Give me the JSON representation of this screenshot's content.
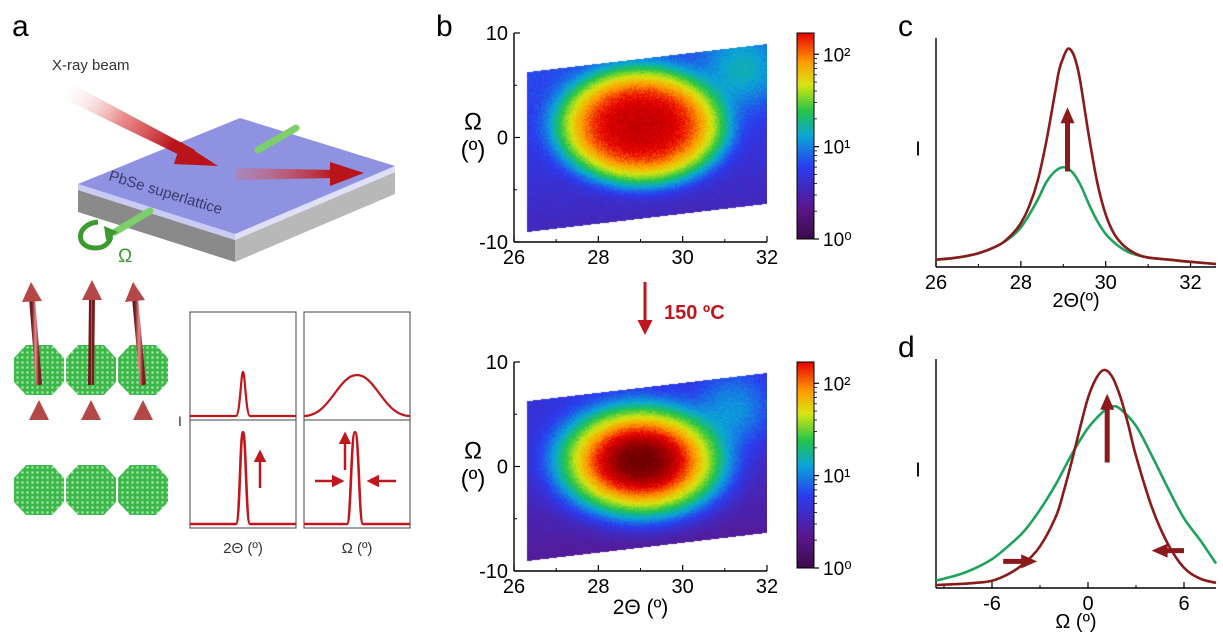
{
  "panels": {
    "a": {
      "letter": "a",
      "beam_label": "X-ray beam",
      "sample_label": "PbSe superlattice",
      "rotation_symbol": "Ω",
      "schematic_y_label": "I",
      "schematic_x_labels": [
        "2Θ (º)",
        "Ω (º)"
      ]
    },
    "b": {
      "letter": "b",
      "treatment_label": "150 ºC"
    },
    "c": {
      "letter": "c"
    },
    "d": {
      "letter": "d"
    }
  },
  "colors": {
    "dark_red": "#8b1a1a",
    "green": "#1fa35c",
    "annotation_red": "#c0161d",
    "lattice_green": "#3cb84a",
    "sample_blue": "#8f92e0"
  },
  "chart_data": [
    {
      "id": "b-top",
      "type": "heatmap",
      "title": "",
      "xlabel": "",
      "ylabel": "Ω\n(º)",
      "xlim": [
        26,
        32
      ],
      "ylim": [
        -10,
        10
      ],
      "x_ticks": [
        "26",
        "28",
        "30",
        "32"
      ],
      "y_ticks": [
        "10",
        "0",
        "-10"
      ],
      "color_scale": "log",
      "colorbar_ticks": [
        "10²",
        "10¹",
        "10⁰"
      ],
      "colorbar_range": [
        1,
        170
      ],
      "data_region": {
        "x_range": [
          26.3,
          32
        ],
        "y_bottom": [
          -9,
          -6.3
        ],
        "y_top": [
          6.3,
          9
        ]
      },
      "peaks": [
        {
          "x": 29.0,
          "y": 1.2,
          "peak_counts": 170,
          "width_2theta": 1.5,
          "width_omega": 4.2,
          "flat_top": true
        },
        {
          "x": 31.4,
          "y": 6.5,
          "peak_counts": 9,
          "width_2theta": 0.8,
          "width_omega": 3.0
        }
      ],
      "background_counts": 3.5
    },
    {
      "id": "b-bottom",
      "type": "heatmap",
      "title": "",
      "xlabel": "2Θ (º)",
      "ylabel": "Ω\n(º)",
      "xlim": [
        26,
        32
      ],
      "ylim": [
        -10,
        10
      ],
      "x_ticks": [
        "26",
        "28",
        "30",
        "32"
      ],
      "y_ticks": [
        "10",
        "0",
        "-10"
      ],
      "color_scale": "log",
      "colorbar_ticks": [
        "10²",
        "10¹",
        "10⁰"
      ],
      "colorbar_range": [
        1,
        170
      ],
      "data_region": {
        "x_range": [
          26.3,
          32
        ],
        "y_bottom": [
          -9,
          -6.3
        ],
        "y_top": [
          6.3,
          9
        ]
      },
      "peaks": [
        {
          "x": 29.0,
          "y": 0.6,
          "peak_counts": 300,
          "width_2theta": 1.1,
          "width_omega": 3.0,
          "flat_top": false
        },
        {
          "x": 31.2,
          "y": 5.5,
          "peak_counts": 7,
          "width_2theta": 0.8,
          "width_omega": 3.0
        }
      ],
      "background_counts": 2.5
    },
    {
      "id": "c",
      "type": "line",
      "title": "",
      "xlabel": "2Θ(º)",
      "ylabel": "I",
      "xlim": [
        26,
        32.6
      ],
      "x_ticks": [
        "26",
        "28",
        "30",
        "32"
      ],
      "series": [
        {
          "color": "#8b1a1a",
          "x": [
            26.0,
            26.5,
            27.0,
            27.5,
            27.8,
            28.0,
            28.2,
            28.4,
            28.6,
            28.8,
            28.9,
            29.0,
            29.1,
            29.2,
            29.3,
            29.4,
            29.6,
            29.8,
            30.0,
            30.2,
            30.4,
            30.6,
            30.8,
            31.0,
            31.5,
            32.0,
            32.6
          ],
          "y": [
            0.02,
            0.03,
            0.05,
            0.09,
            0.14,
            0.19,
            0.27,
            0.39,
            0.57,
            0.79,
            0.9,
            0.96,
            1.0,
            0.99,
            0.94,
            0.85,
            0.6,
            0.38,
            0.23,
            0.14,
            0.09,
            0.06,
            0.04,
            0.03,
            0.02,
            0.01,
            0.0
          ]
        },
        {
          "color": "#1fa35c",
          "x": [
            26.0,
            26.5,
            27.0,
            27.5,
            27.8,
            28.0,
            28.2,
            28.4,
            28.6,
            28.8,
            29.0,
            29.2,
            29.4,
            29.6,
            29.8,
            30.0,
            30.2,
            30.4,
            30.6,
            31.0,
            31.5,
            32.0,
            32.6
          ],
          "y": [
            0.02,
            0.03,
            0.05,
            0.09,
            0.13,
            0.17,
            0.23,
            0.3,
            0.38,
            0.43,
            0.45,
            0.43,
            0.37,
            0.28,
            0.2,
            0.14,
            0.1,
            0.07,
            0.05,
            0.03,
            0.02,
            0.01,
            0.0
          ]
        }
      ],
      "annotations": [
        {
          "type": "arrow",
          "direction": "up",
          "x": 29.1,
          "y_from": 0.43,
          "y_to": 0.72
        }
      ]
    },
    {
      "id": "d",
      "type": "line",
      "title": "",
      "xlabel": "Ω (º)",
      "ylabel": "I",
      "xlim": [
        -9.5,
        8
      ],
      "x_ticks": [
        "-6",
        "0",
        "6"
      ],
      "series": [
        {
          "color": "#8b1a1a",
          "x": [
            -9.5,
            -8,
            -7,
            -6,
            -5,
            -4,
            -3,
            -2,
            -1.5,
            -1,
            -0.5,
            0,
            0.5,
            1,
            1.5,
            2,
            2.5,
            3,
            4,
            5,
            6,
            7,
            8
          ],
          "y": [
            0.0,
            0.005,
            0.01,
            0.02,
            0.05,
            0.1,
            0.18,
            0.32,
            0.44,
            0.58,
            0.73,
            0.87,
            0.96,
            1.0,
            0.97,
            0.88,
            0.75,
            0.6,
            0.36,
            0.19,
            0.08,
            0.03,
            0.01
          ]
        },
        {
          "color": "#1fa35c",
          "x": [
            -9.5,
            -8,
            -7,
            -6,
            -5,
            -4,
            -3,
            -2,
            -1,
            0,
            1,
            1.5,
            2,
            3,
            4,
            5,
            6,
            7,
            8
          ],
          "y": [
            0.02,
            0.05,
            0.08,
            0.12,
            0.18,
            0.25,
            0.35,
            0.47,
            0.61,
            0.73,
            0.81,
            0.83,
            0.82,
            0.74,
            0.6,
            0.45,
            0.31,
            0.21,
            0.1
          ]
        }
      ],
      "annotations": [
        {
          "type": "arrow",
          "direction": "up",
          "x": 1.2,
          "y_from": 0.57,
          "y_to": 0.88
        },
        {
          "type": "arrow",
          "direction": "right",
          "y": 0.11,
          "x_from": -5.3,
          "x_to": -3.3
        },
        {
          "type": "arrow",
          "direction": "left",
          "y": 0.16,
          "x_from": 6.0,
          "x_to": 4.1
        }
      ]
    }
  ]
}
